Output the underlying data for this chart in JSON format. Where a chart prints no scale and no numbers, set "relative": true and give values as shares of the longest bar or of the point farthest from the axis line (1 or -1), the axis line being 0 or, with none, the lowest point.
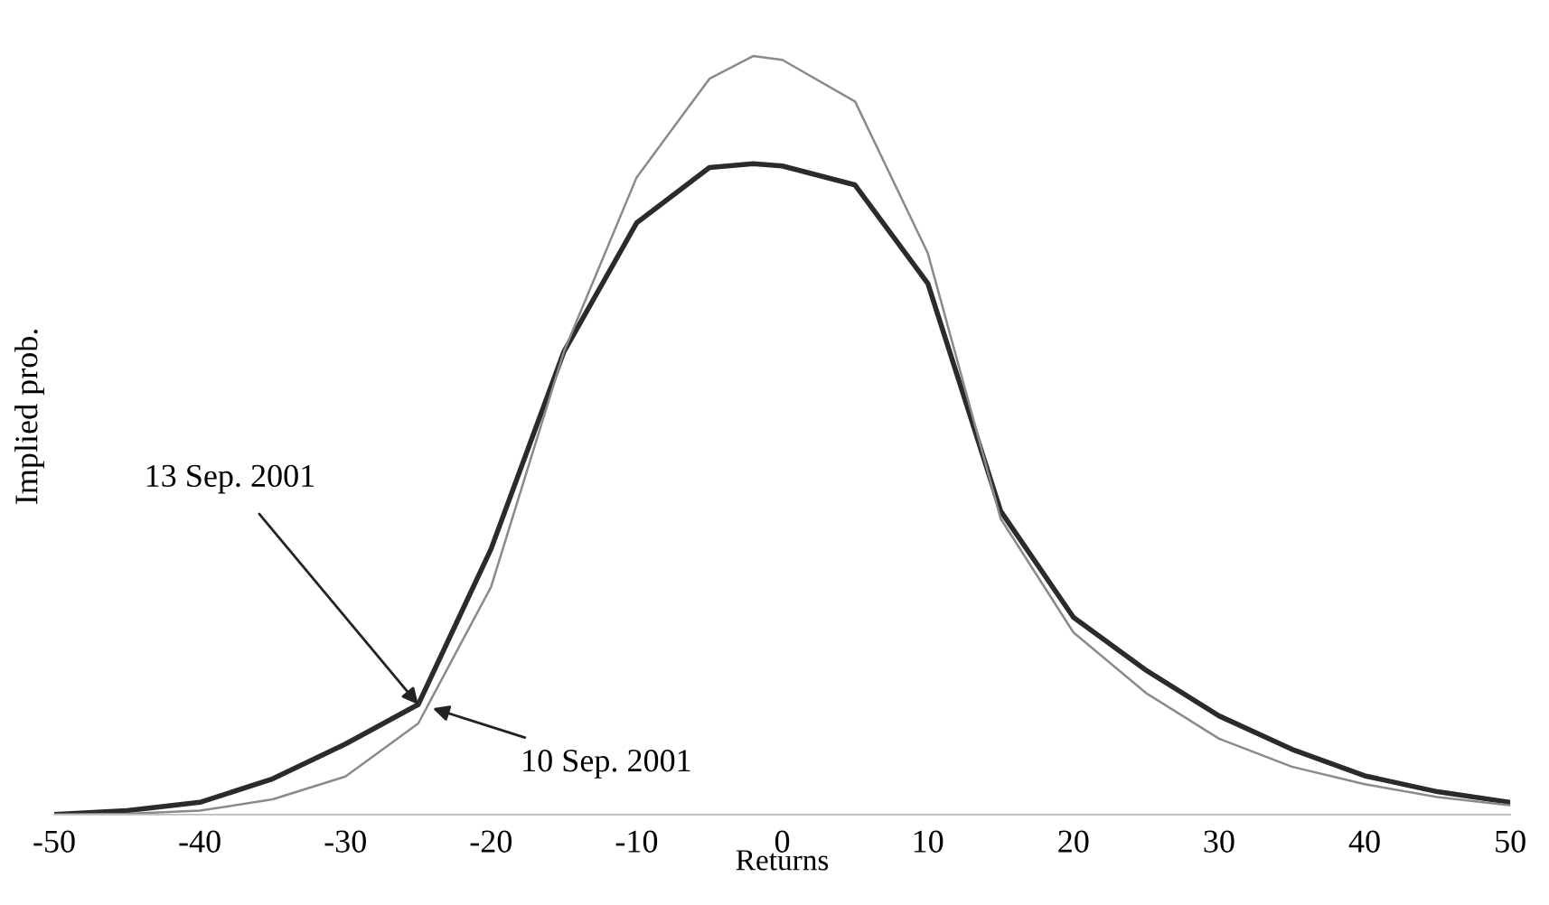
{
  "chart_data": {
    "type": "line",
    "relative": true,
    "xlabel": "Returns",
    "ylabel": "Implied prob.",
    "x": [
      -50,
      -45,
      -40,
      -35,
      -30,
      -25,
      -20,
      -15,
      -10,
      -5,
      -2,
      0,
      5,
      10,
      15,
      20,
      25,
      30,
      35,
      40,
      45,
      50
    ],
    "xlim": [
      -50,
      50
    ],
    "xticks": [
      -50,
      -40,
      -30,
      -20,
      -10,
      0,
      10,
      20,
      30,
      40,
      50
    ],
    "series": [
      {
        "color": "#2b2b2b",
        "values": [
          0,
          0.005,
          0.016,
          0.047,
          0.093,
          0.145,
          0.35,
          0.61,
          0.78,
          0.853,
          0.858,
          0.855,
          0.83,
          0.7,
          0.4,
          0.26,
          0.19,
          0.13,
          0.086,
          0.051,
          0.03,
          0.016
        ]
      },
      {
        "color": "#8a8a8a",
        "values": [
          0,
          0.001,
          0.005,
          0.02,
          0.05,
          0.12,
          0.3,
          0.61,
          0.84,
          0.97,
          1.0,
          0.995,
          0.94,
          0.74,
          0.39,
          0.24,
          0.16,
          0.1,
          0.063,
          0.04,
          0.023,
          0.012
        ]
      }
    ],
    "annotations": [
      {
        "text": "13 Sep. 2001",
        "x": -25,
        "y": 0.145
      },
      {
        "text": "10 Sep. 2001",
        "x": -24,
        "y": 0.14
      }
    ],
    "grid": false,
    "legend": false,
    "marker": "none",
    "line_style": "solid"
  }
}
